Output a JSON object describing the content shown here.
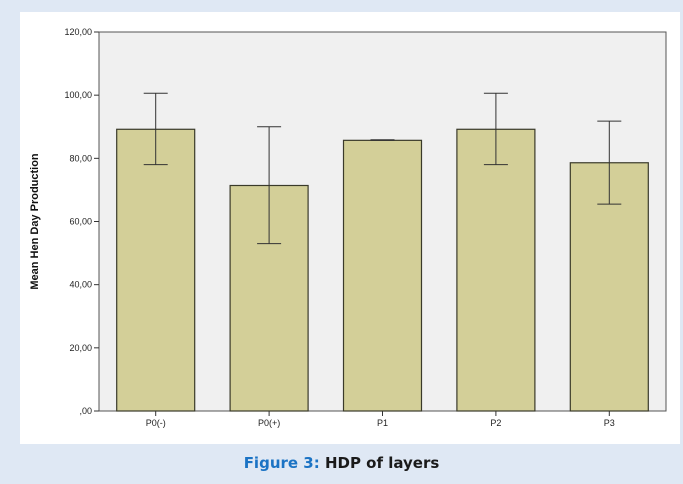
{
  "chart_data": {
    "type": "bar",
    "title": "",
    "xlabel": "",
    "ylabel": "Mean Hen Day Production",
    "categories": [
      "P0(-)",
      "P0(+)",
      "P1",
      "P2",
      "P3"
    ],
    "values": [
      89.2,
      71.4,
      85.7,
      89.2,
      78.6
    ],
    "error_low": [
      78.0,
      53.0,
      85.7,
      78.0,
      65.5
    ],
    "error_high": [
      100.6,
      90.0,
      85.9,
      100.6,
      91.8
    ],
    "ylim": [
      0,
      120
    ],
    "yticks": [
      0,
      20,
      40,
      60,
      80,
      100,
      120
    ],
    "ytick_labels": [
      ",00",
      "20,00",
      "40,00",
      "60,00",
      "80,00",
      "100,00",
      "120,00"
    ],
    "grid": false,
    "colors": {
      "bar_fill": "#d3cf98",
      "bar_stroke": "#3a3a2a",
      "plot_bg": "#f0f0f0"
    }
  },
  "caption": {
    "label": "Figure 3:",
    "text": " HDP of layers"
  }
}
